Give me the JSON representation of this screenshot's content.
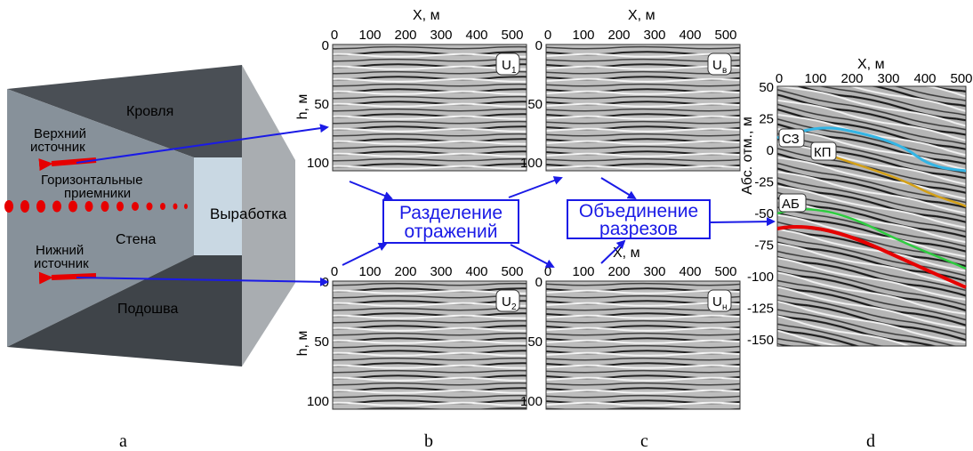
{
  "panel_a": {
    "roof": "Кровля",
    "upper_source": [
      "Верхний",
      "источник"
    ],
    "receivers": [
      "Горизонтальные",
      "приемники"
    ],
    "excavation": "Выработка",
    "wall": "Стена",
    "lower_source": [
      "Нижний",
      "источник"
    ],
    "floor": "Подошва"
  },
  "sections": {
    "x_label": "X,  м",
    "x_ticks": [
      "0",
      "100",
      "200",
      "300",
      "400",
      "500"
    ],
    "h_label": "h, м",
    "h_ticks": [
      "0",
      "50",
      "100"
    ],
    "u1": "U",
    "u1_sub": "1",
    "u2": "U",
    "u2_sub": "2",
    "uv": "U",
    "uv_sub": "в",
    "un": "U",
    "un_sub": "н"
  },
  "boxes": {
    "separation": [
      "Разделение",
      "отражений"
    ],
    "merge": [
      "Объединение",
      "разрезов"
    ]
  },
  "panel_d": {
    "x_label": "X,  м",
    "x_ticks": [
      "0",
      "100",
      "200",
      "300",
      "400",
      "500"
    ],
    "y_label": "Абс. отм., м",
    "y_ticks": [
      "50",
      "25",
      "0",
      "-25",
      "-50",
      "-75",
      "-100",
      "-125",
      "-150"
    ],
    "horizons": [
      "СЗ",
      "КП",
      "АБ"
    ],
    "colors": {
      "sz": "#33b5e5",
      "kp": "#d4a017",
      "ab_green": "#2ecc40",
      "ab_red": "#e60000"
    }
  },
  "captions": [
    "a",
    "b",
    "c",
    "d"
  ],
  "colors": {
    "arrow": "#1a1ae6",
    "source": "#e60000"
  }
}
